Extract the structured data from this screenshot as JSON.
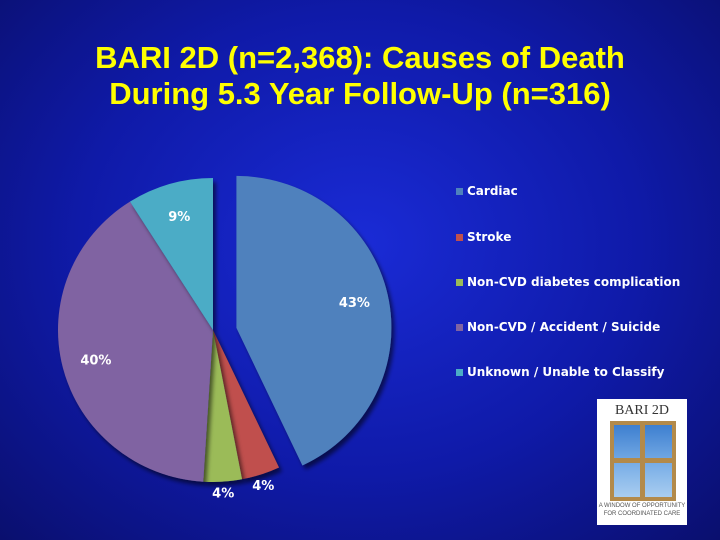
{
  "title": {
    "line1": "BARI 2D (n=2,368): Causes of Death",
    "line2": "During 5.3 Year Follow-Up (n=316)"
  },
  "chart_data": {
    "type": "pie",
    "categories": [
      "Cardiac",
      "Stroke",
      "Non-CVD diabetes complication",
      "Non-CVD / Accident / Suicide",
      "Unknown / Unable to Classify"
    ],
    "values": [
      43,
      4,
      4,
      40,
      9
    ],
    "data_labels": [
      "43%",
      "4%",
      "4%",
      "40%",
      "9%"
    ],
    "colors": [
      "#4f81bd",
      "#c0504d",
      "#9bbb59",
      "#8064a2",
      "#4bacc6"
    ],
    "exploded": [
      true,
      false,
      false,
      false,
      false
    ],
    "legend_position": "right"
  },
  "legend": {
    "items": [
      {
        "label": "Cardiac",
        "color": "#4f81bd"
      },
      {
        "label": "Stroke",
        "color": "#c0504d"
      },
      {
        "label": "Non-CVD diabetes complication",
        "color": "#9bbb59"
      },
      {
        "label": "Non-CVD / Accident / Suicide",
        "color": "#8064a2"
      },
      {
        "label": "Unknown / Unable to Classify",
        "color": "#4bacc6"
      }
    ]
  },
  "logo": {
    "title": "BARI 2D",
    "tagline1": "A WINDOW OF OPPORTUNITY",
    "tagline2": "FOR COORDINATED CARE"
  }
}
